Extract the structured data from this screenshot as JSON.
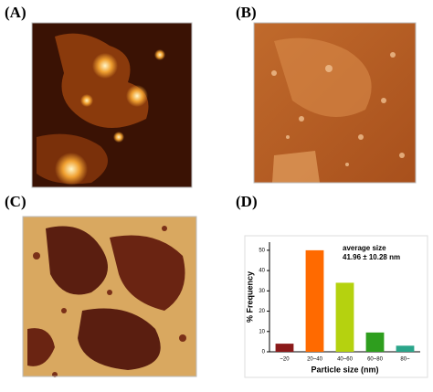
{
  "panel_labels": [
    "(A)",
    "(B)",
    "(C)",
    "(D)"
  ],
  "chart_data": {
    "type": "bar",
    "categories": [
      "~20",
      "20~40",
      "40~60",
      "60~80",
      "80~"
    ],
    "values": [
      4,
      50,
      34,
      9.5,
      3
    ],
    "colors": [
      "#8b1a1a",
      "#ff6a00",
      "#b5d20f",
      "#2e9e1e",
      "#2aa58a"
    ],
    "ylim": [
      0,
      54
    ],
    "yticks": [
      0,
      10,
      20,
      30,
      40,
      50
    ],
    "y_label": "% Frequency",
    "x_label": "Particle size (nm)",
    "annotations": [
      "average size",
      "41.96 ± 10.28 nm"
    ]
  }
}
